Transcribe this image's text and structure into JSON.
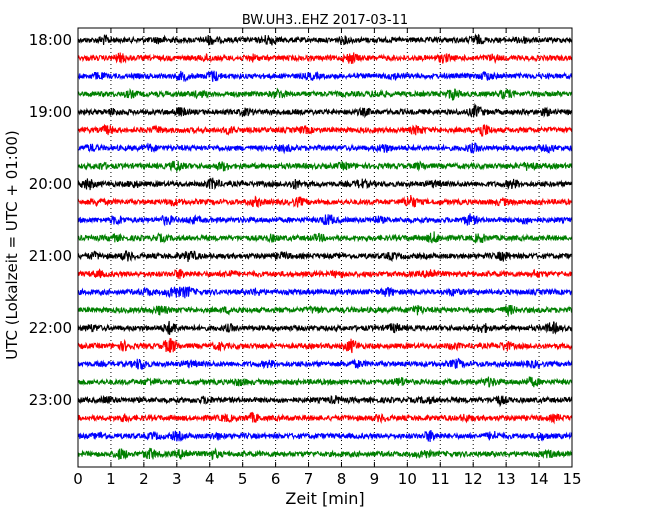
{
  "chart_data": {
    "type": "line",
    "title": "BW.UH3..EHZ 2017-03-11",
    "xlabel": "Zeit  [min]",
    "ylabel": "UTC (Lokalzeit = UTC + 01:00)",
    "xlim": [
      0,
      15
    ],
    "xticks": [
      0,
      1,
      2,
      3,
      4,
      5,
      6,
      7,
      8,
      9,
      10,
      11,
      12,
      13,
      14,
      15
    ],
    "yticklabels": [
      "18:00",
      "19:00",
      "20:00",
      "21:00",
      "22:00",
      "23:00"
    ],
    "vertical_grid": "dotted",
    "colors": [
      "#000000",
      "#ff0000",
      "#0000ff",
      "#008000"
    ],
    "series": [
      {
        "start": "18:00",
        "color": "#000000",
        "events": [
          [
            0.8,
            3
          ],
          [
            2.5,
            2
          ],
          [
            4,
            3
          ],
          [
            5.8,
            4
          ],
          [
            8.1,
            2
          ],
          [
            12.1,
            3
          ],
          [
            13.5,
            2
          ]
        ]
      },
      {
        "start": "18:15",
        "color": "#ff0000",
        "events": [
          [
            1.3,
            3
          ],
          [
            3.9,
            2
          ],
          [
            5.3,
            2
          ],
          [
            8.3,
            4
          ],
          [
            11.1,
            3
          ],
          [
            12.6,
            2
          ]
        ]
      },
      {
        "start": "18:30",
        "color": "#0000ff",
        "events": [
          [
            0.6,
            2
          ],
          [
            3.2,
            3
          ],
          [
            4.1,
            4
          ],
          [
            7.1,
            2
          ],
          [
            9.6,
            2
          ],
          [
            12.4,
            3
          ]
        ]
      },
      {
        "start": "18:45",
        "color": "#008000",
        "events": [
          [
            1.6,
            2
          ],
          [
            3.7,
            2
          ],
          [
            6.1,
            3
          ],
          [
            9.1,
            2
          ],
          [
            11.4,
            4
          ],
          [
            13,
            3
          ]
        ]
      },
      {
        "start": "19:00",
        "color": "#000000",
        "events": [
          [
            1.1,
            2
          ],
          [
            3.1,
            3
          ],
          [
            5.1,
            2
          ],
          [
            8.7,
            2
          ],
          [
            12.1,
            5
          ],
          [
            14.2,
            2
          ]
        ]
      },
      {
        "start": "19:15",
        "color": "#ff0000",
        "events": [
          [
            0.9,
            3
          ],
          [
            2.4,
            2
          ],
          [
            4.6,
            2
          ],
          [
            6.9,
            2
          ],
          [
            10.3,
            3
          ],
          [
            12.3,
            5
          ]
        ]
      },
      {
        "start": "19:30",
        "color": "#0000ff",
        "events": [
          [
            0.4,
            2
          ],
          [
            2.2,
            2
          ],
          [
            6.3,
            2
          ],
          [
            9.3,
            3
          ],
          [
            12,
            3
          ],
          [
            14.3,
            2
          ]
        ]
      },
      {
        "start": "19:45",
        "color": "#008000",
        "events": [
          [
            0.7,
            2
          ],
          [
            3,
            4
          ],
          [
            4.4,
            3
          ],
          [
            8.1,
            2
          ],
          [
            10.4,
            2
          ],
          [
            13.7,
            3
          ]
        ]
      },
      {
        "start": "20:00",
        "color": "#000000",
        "events": [
          [
            0.3,
            4
          ],
          [
            1.7,
            2
          ],
          [
            4.1,
            4
          ],
          [
            6.6,
            3
          ],
          [
            8.6,
            3
          ],
          [
            10.8,
            2
          ],
          [
            13.2,
            3
          ]
        ]
      },
      {
        "start": "20:15",
        "color": "#ff0000",
        "events": [
          [
            0.6,
            2
          ],
          [
            2.9,
            2
          ],
          [
            5.4,
            3
          ],
          [
            6.7,
            3
          ],
          [
            10.1,
            5
          ],
          [
            12.9,
            2
          ]
        ]
      },
      {
        "start": "20:30",
        "color": "#0000ff",
        "events": [
          [
            1.2,
            3
          ],
          [
            2.7,
            3
          ],
          [
            3.5,
            2
          ],
          [
            7.6,
            4
          ],
          [
            9.1,
            2
          ],
          [
            11.9,
            4
          ],
          [
            13.6,
            2
          ]
        ]
      },
      {
        "start": "20:45",
        "color": "#008000",
        "events": [
          [
            1.1,
            2
          ],
          [
            2.5,
            2
          ],
          [
            5.9,
            2
          ],
          [
            7.3,
            2
          ],
          [
            10.8,
            4
          ],
          [
            12.2,
            3
          ]
        ]
      },
      {
        "start": "21:00",
        "color": "#000000",
        "events": [
          [
            0.5,
            2
          ],
          [
            1.5,
            3
          ],
          [
            3.4,
            4
          ],
          [
            6.2,
            2
          ],
          [
            9.5,
            2
          ],
          [
            12.9,
            3
          ]
        ]
      },
      {
        "start": "21:15",
        "color": "#ff0000",
        "events": [
          [
            0.6,
            2
          ],
          [
            3.1,
            3
          ],
          [
            4.6,
            2
          ],
          [
            7.9,
            2
          ],
          [
            10.7,
            4
          ],
          [
            13.9,
            2
          ]
        ]
      },
      {
        "start": "21:30",
        "color": "#0000ff",
        "events": [
          [
            2.1,
            2
          ],
          [
            2.9,
            5
          ],
          [
            3.3,
            4
          ],
          [
            5.4,
            2
          ],
          [
            9.4,
            3
          ],
          [
            11.4,
            2
          ]
        ]
      },
      {
        "start": "21:45",
        "color": "#008000",
        "events": [
          [
            2.5,
            3
          ],
          [
            4.6,
            2
          ],
          [
            7.2,
            2
          ],
          [
            10.3,
            3
          ],
          [
            13.1,
            3
          ]
        ]
      },
      {
        "start": "22:00",
        "color": "#000000",
        "events": [
          [
            0.4,
            2
          ],
          [
            2.8,
            5
          ],
          [
            4.6,
            2
          ],
          [
            9.6,
            3
          ],
          [
            12.3,
            3
          ],
          [
            14.4,
            4
          ]
        ]
      },
      {
        "start": "22:15",
        "color": "#ff0000",
        "events": [
          [
            1.4,
            3
          ],
          [
            2.8,
            6
          ],
          [
            4.3,
            2
          ],
          [
            8.3,
            5
          ],
          [
            11.4,
            2
          ],
          [
            13,
            3
          ]
        ]
      },
      {
        "start": "22:30",
        "color": "#0000ff",
        "events": [
          [
            1.9,
            4
          ],
          [
            3.4,
            2
          ],
          [
            5.8,
            2
          ],
          [
            8.5,
            2
          ],
          [
            11.5,
            3
          ],
          [
            13.8,
            2
          ]
        ]
      },
      {
        "start": "22:45",
        "color": "#008000",
        "events": [
          [
            2.2,
            2
          ],
          [
            4.9,
            2
          ],
          [
            9.8,
            3
          ],
          [
            12.5,
            3
          ],
          [
            13.8,
            3
          ]
        ]
      },
      {
        "start": "23:00",
        "color": "#000000",
        "events": [
          [
            0.9,
            2
          ],
          [
            3.9,
            2
          ],
          [
            7.8,
            2
          ],
          [
            10.6,
            2
          ],
          [
            12.8,
            3
          ]
        ]
      },
      {
        "start": "23:15",
        "color": "#ff0000",
        "events": [
          [
            1.4,
            2
          ],
          [
            4.5,
            2
          ],
          [
            5.3,
            3
          ],
          [
            9.2,
            2
          ],
          [
            11.8,
            2
          ],
          [
            14.5,
            2
          ]
        ]
      },
      {
        "start": "23:30",
        "color": "#0000ff",
        "events": [
          [
            0.7,
            2
          ],
          [
            2.3,
            2
          ],
          [
            3,
            3
          ],
          [
            4.2,
            2
          ],
          [
            10.7,
            4
          ],
          [
            12.6,
            3
          ],
          [
            14.1,
            2
          ]
        ]
      },
      {
        "start": "23:45",
        "color": "#008000",
        "events": [
          [
            1.3,
            4
          ],
          [
            2.2,
            4
          ],
          [
            3.2,
            4
          ],
          [
            4.1,
            3
          ],
          [
            10.5,
            3
          ],
          [
            14.3,
            2
          ]
        ]
      }
    ]
  }
}
